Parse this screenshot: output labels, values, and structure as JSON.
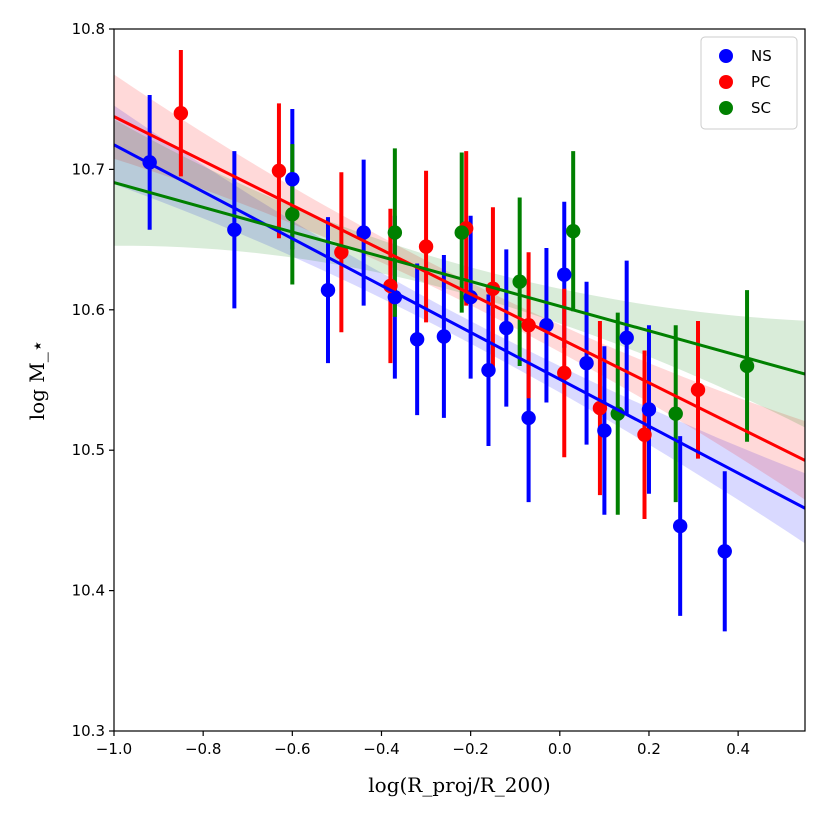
{
  "chart_data": {
    "type": "scatter",
    "title": "",
    "xlabel": "log(R_proj/R_200)",
    "ylabel": "log M_⋆",
    "xlim": [
      -1.0,
      0.55
    ],
    "ylim": [
      10.3,
      10.8
    ],
    "xticks": [
      -1.0,
      -0.8,
      -0.6,
      -0.4,
      -0.2,
      0.0,
      0.2,
      0.4
    ],
    "xtick_labels": [
      "−1.0",
      "−0.8",
      "−0.6",
      "−0.4",
      "−0.2",
      "0.0",
      "0.2",
      "0.4"
    ],
    "yticks": [
      10.3,
      10.4,
      10.5,
      10.6,
      10.7,
      10.8
    ],
    "ytick_labels": [
      "10.3",
      "10.4",
      "10.5",
      "10.6",
      "10.7",
      "10.8"
    ],
    "legend_position": "top-right",
    "series": [
      {
        "name": "NS",
        "color": "#0000ff",
        "points": [
          {
            "x": -0.92,
            "y": 10.705,
            "err": 0.048
          },
          {
            "x": -0.73,
            "y": 10.657,
            "err": 0.056
          },
          {
            "x": -0.6,
            "y": 10.693,
            "err": 0.05
          },
          {
            "x": -0.52,
            "y": 10.614,
            "err": 0.052
          },
          {
            "x": -0.44,
            "y": 10.655,
            "err": 0.052
          },
          {
            "x": -0.37,
            "y": 10.609,
            "err": 0.058
          },
          {
            "x": -0.32,
            "y": 10.579,
            "err": 0.054
          },
          {
            "x": -0.26,
            "y": 10.581,
            "err": 0.058
          },
          {
            "x": -0.2,
            "y": 10.609,
            "err": 0.058
          },
          {
            "x": -0.16,
            "y": 10.557,
            "err": 0.054
          },
          {
            "x": -0.12,
            "y": 10.587,
            "err": 0.056
          },
          {
            "x": -0.07,
            "y": 10.523,
            "err": 0.06
          },
          {
            "x": -0.03,
            "y": 10.589,
            "err": 0.055
          },
          {
            "x": 0.01,
            "y": 10.625,
            "err": 0.052
          },
          {
            "x": 0.06,
            "y": 10.562,
            "err": 0.058
          },
          {
            "x": 0.1,
            "y": 10.514,
            "err": 0.06
          },
          {
            "x": 0.15,
            "y": 10.58,
            "err": 0.055
          },
          {
            "x": 0.2,
            "y": 10.529,
            "err": 0.06
          },
          {
            "x": 0.27,
            "y": 10.446,
            "err": 0.064
          },
          {
            "x": 0.37,
            "y": 10.428,
            "err": 0.057
          }
        ],
        "fit": {
          "slope": -0.167,
          "intercept": 10.5505,
          "band_halfwidth": [
            0.028,
            0.008,
            0.025
          ]
        }
      },
      {
        "name": "PC",
        "color": "#ff0000",
        "points": [
          {
            "x": -0.85,
            "y": 10.74,
            "err": 0.045
          },
          {
            "x": -0.63,
            "y": 10.699,
            "err": 0.048
          },
          {
            "x": -0.49,
            "y": 10.641,
            "err": 0.057
          },
          {
            "x": -0.38,
            "y": 10.617,
            "err": 0.055
          },
          {
            "x": -0.3,
            "y": 10.645,
            "err": 0.054
          },
          {
            "x": -0.21,
            "y": 10.658,
            "err": 0.055
          },
          {
            "x": -0.15,
            "y": 10.615,
            "err": 0.058
          },
          {
            "x": -0.07,
            "y": 10.589,
            "err": 0.052
          },
          {
            "x": 0.01,
            "y": 10.555,
            "err": 0.06
          },
          {
            "x": 0.09,
            "y": 10.53,
            "err": 0.062
          },
          {
            "x": 0.19,
            "y": 10.511,
            "err": 0.06
          },
          {
            "x": 0.31,
            "y": 10.543,
            "err": 0.049
          }
        ],
        "fit": {
          "slope": -0.158,
          "intercept": 10.5796,
          "band_halfwidth": [
            0.03,
            0.008,
            0.028
          ]
        }
      },
      {
        "name": "SC",
        "color": "#008000",
        "points": [
          {
            "x": -0.6,
            "y": 10.668,
            "err": 0.05
          },
          {
            "x": -0.37,
            "y": 10.655,
            "err": 0.06
          },
          {
            "x": -0.22,
            "y": 10.655,
            "err": 0.057
          },
          {
            "x": -0.09,
            "y": 10.62,
            "err": 0.06
          },
          {
            "x": 0.03,
            "y": 10.656,
            "err": 0.057
          },
          {
            "x": 0.13,
            "y": 10.526,
            "err": 0.072
          },
          {
            "x": 0.26,
            "y": 10.526,
            "err": 0.063
          },
          {
            "x": 0.42,
            "y": 10.56,
            "err": 0.054
          }
        ],
        "fit": {
          "slope": -0.088,
          "intercept": 10.6026,
          "band_halfwidth": [
            0.045,
            0.01,
            0.038
          ]
        }
      }
    ]
  }
}
